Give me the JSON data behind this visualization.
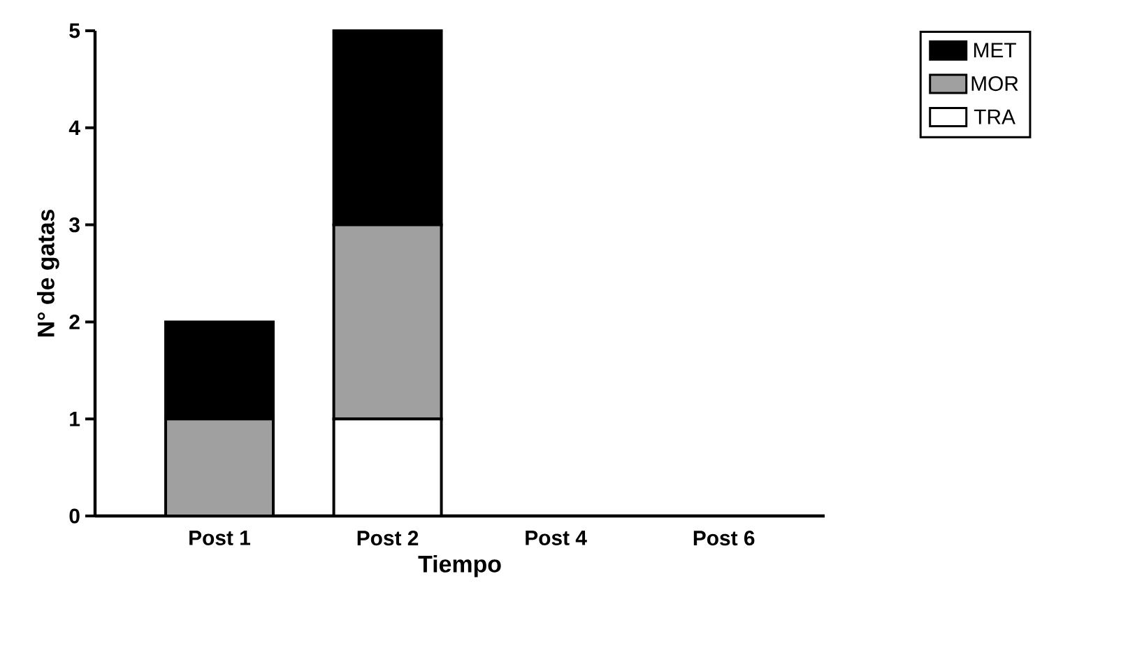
{
  "chart_data": {
    "type": "bar",
    "stacked": true,
    "xlabel": "Tiempo",
    "ylabel": "N° de gatas",
    "categories": [
      "Post 1",
      "Post 2",
      "Post 4",
      "Post 6"
    ],
    "series": [
      {
        "name": "TRA",
        "color": "#ffffff",
        "values": [
          0,
          1,
          0,
          0
        ]
      },
      {
        "name": "MOR",
        "color": "#a0a0a0",
        "values": [
          1,
          2,
          0,
          0
        ]
      },
      {
        "name": "MET",
        "color": "#000000",
        "values": [
          1,
          2,
          0,
          0
        ]
      }
    ],
    "ylim": [
      0,
      5
    ],
    "yticks": [
      0,
      1,
      2,
      3,
      4,
      5
    ],
    "grid": false,
    "legend": "top right"
  }
}
